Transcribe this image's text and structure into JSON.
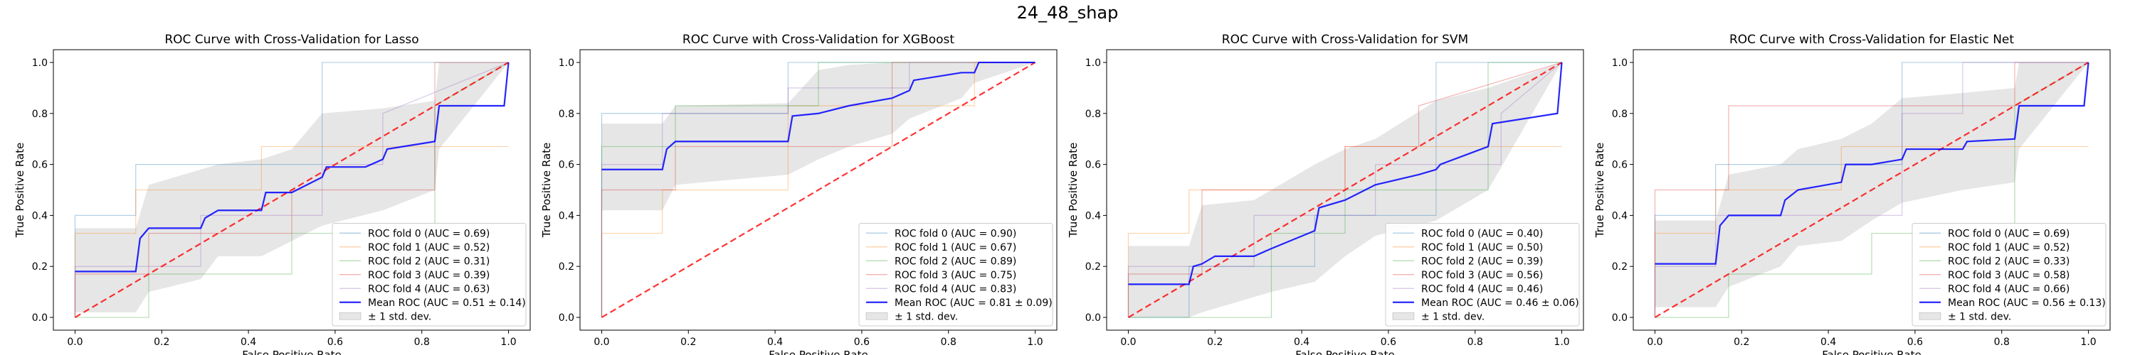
{
  "suptitle": "24_48_shap",
  "colors": {
    "folds": [
      "#1f77b4",
      "#ff7f0e",
      "#2ca02c",
      "#d62728",
      "#9467bd"
    ],
    "mean": "#0000ff",
    "chance": "#ff0000",
    "band": "#808080"
  },
  "chart_data": [
    {
      "type": "line",
      "title": "ROC Curve with Cross-Validation for Lasso",
      "xlabel": "False Positive Rate",
      "ylabel": "True Positive Rate",
      "xlim": [
        -0.05,
        1.05
      ],
      "ylim": [
        -0.05,
        1.05
      ],
      "xticks": [
        "0.0",
        "0.2",
        "0.4",
        "0.6",
        "0.8",
        "1.0"
      ],
      "yticks": [
        "0.0",
        "0.2",
        "0.4",
        "0.6",
        "0.8",
        "1.0"
      ],
      "legend": {
        "position": "lower-right",
        "std_label": "± 1 std. dev."
      },
      "folds": [
        {
          "label": "ROC fold 0 (AUC = 0.69)",
          "x": [
            0,
            0,
            0.14,
            0.14,
            0.57,
            0.57,
            1
          ],
          "y": [
            0,
            0.4,
            0.4,
            0.6,
            0.6,
            1,
            1
          ]
        },
        {
          "label": "ROC fold 1 (AUC = 0.52)",
          "x": [
            0,
            0,
            0.14,
            0.14,
            0.43,
            0.43,
            0.83,
            0.83,
            1
          ],
          "y": [
            0,
            0.33,
            0.33,
            0.5,
            0.5,
            0.67,
            0.67,
            0.67,
            0.67
          ]
        },
        {
          "label": "ROC fold 2 (AUC = 0.31)",
          "x": [
            0,
            0.17,
            0.17,
            0.5,
            0.5,
            0.83,
            0.83,
            1
          ],
          "y": [
            0,
            0,
            0.17,
            0.17,
            0.33,
            0.33,
            0.83,
            1
          ]
        },
        {
          "label": "ROC fold 3 (AUC = 0.39)",
          "x": [
            0,
            0,
            0.17,
            0.17,
            0.5,
            0.5,
            0.83,
            0.83,
            1
          ],
          "y": [
            0,
            0.17,
            0.17,
            0.33,
            0.33,
            0.5,
            0.5,
            1,
            1
          ]
        },
        {
          "label": "ROC fold 4 (AUC = 0.63)",
          "x": [
            0,
            0,
            0.29,
            0.29,
            0.57,
            0.57,
            0.71,
            0.71,
            1
          ],
          "y": [
            0,
            0.2,
            0.2,
            0.4,
            0.4,
            0.6,
            0.6,
            0.8,
            1
          ]
        }
      ],
      "mean": {
        "label": "Mean ROC (AUC = 0.51 ± 0.14)",
        "x": [
          0,
          0.14,
          0.15,
          0.17,
          0.29,
          0.3,
          0.33,
          0.43,
          0.44,
          0.5,
          0.57,
          0.58,
          0.67,
          0.71,
          0.72,
          0.83,
          0.84,
          0.99,
          1
        ],
        "y": [
          0.18,
          0.18,
          0.31,
          0.35,
          0.35,
          0.39,
          0.42,
          0.42,
          0.49,
          0.49,
          0.55,
          0.59,
          0.59,
          0.62,
          0.66,
          0.69,
          0.83,
          0.83,
          1
        ]
      },
      "band": {
        "x": [
          0,
          0.14,
          0.17,
          0.29,
          0.33,
          0.43,
          0.5,
          0.57,
          0.71,
          0.83,
          0.84,
          1
        ],
        "upper": [
          0.35,
          0.35,
          0.52,
          0.58,
          0.6,
          0.62,
          0.66,
          0.8,
          0.82,
          0.85,
          1,
          1
        ],
        "lower": [
          0.02,
          0.02,
          0.1,
          0.15,
          0.24,
          0.24,
          0.3,
          0.36,
          0.42,
          0.5,
          0.66,
          1
        ]
      }
    },
    {
      "type": "line",
      "title": "ROC Curve with Cross-Validation for XGBoost",
      "xlabel": "False Positive Rate",
      "ylabel": "True Positive Rate",
      "xlim": [
        -0.05,
        1.05
      ],
      "ylim": [
        -0.05,
        1.05
      ],
      "xticks": [
        "0.0",
        "0.2",
        "0.4",
        "0.6",
        "0.8",
        "1.0"
      ],
      "yticks": [
        "0.0",
        "0.2",
        "0.4",
        "0.6",
        "0.8",
        "1.0"
      ],
      "legend": {
        "position": "lower-right",
        "std_label": "± 1 std. dev."
      },
      "folds": [
        {
          "label": "ROC fold 0 (AUC = 0.90)",
          "x": [
            0,
            0,
            0.43,
            0.43,
            0.86,
            0.86,
            1
          ],
          "y": [
            0,
            0.8,
            0.8,
            1,
            1,
            1,
            1
          ]
        },
        {
          "label": "ROC fold 1 (AUC = 0.67)",
          "x": [
            0,
            0,
            0.14,
            0.14,
            0.43,
            0.43,
            0.86,
            0.86,
            1
          ],
          "y": [
            0,
            0.33,
            0.33,
            0.5,
            0.5,
            0.83,
            0.83,
            1,
            1
          ]
        },
        {
          "label": "ROC fold 2 (AUC = 0.89)",
          "x": [
            0,
            0,
            0.17,
            0.17,
            0.5,
            0.5,
            1
          ],
          "y": [
            0,
            0.67,
            0.67,
            0.83,
            0.83,
            1,
            1
          ]
        },
        {
          "label": "ROC fold 3 (AUC = 0.75)",
          "x": [
            0,
            0,
            0.17,
            0.17,
            0.67,
            0.67,
            1
          ],
          "y": [
            0,
            0.5,
            0.5,
            0.67,
            0.67,
            1,
            1
          ]
        },
        {
          "label": "ROC fold 4 (AUC = 0.83)",
          "x": [
            0,
            0,
            0.14,
            0.14,
            0.43,
            0.43,
            0.71,
            0.71,
            1
          ],
          "y": [
            0,
            0.6,
            0.6,
            0.8,
            0.8,
            0.9,
            0.9,
            1,
            1
          ]
        }
      ],
      "mean": {
        "label": "Mean ROC (AUC = 0.81 ± 0.09)",
        "x": [
          0,
          0.14,
          0.15,
          0.17,
          0.43,
          0.44,
          0.5,
          0.57,
          0.67,
          0.71,
          0.72,
          0.83,
          0.86,
          0.87,
          1
        ],
        "y": [
          0.58,
          0.58,
          0.66,
          0.69,
          0.69,
          0.79,
          0.8,
          0.83,
          0.86,
          0.89,
          0.93,
          0.96,
          0.96,
          1,
          1
        ]
      },
      "band": {
        "x": [
          0,
          0.14,
          0.17,
          0.43,
          0.5,
          0.57,
          0.67,
          0.71,
          0.83,
          0.86,
          1
        ],
        "upper": [
          0.76,
          0.76,
          0.83,
          0.84,
          0.97,
          0.99,
          1,
          1,
          1,
          1,
          1
        ],
        "lower": [
          0.42,
          0.42,
          0.52,
          0.56,
          0.62,
          0.67,
          0.72,
          0.78,
          0.86,
          0.92,
          1
        ]
      }
    },
    {
      "type": "line",
      "title": "ROC Curve with Cross-Validation for SVM",
      "xlabel": "False Positive Rate",
      "ylabel": "True Positive Rate",
      "xlim": [
        -0.05,
        1.05
      ],
      "ylim": [
        -0.05,
        1.05
      ],
      "xticks": [
        "0.0",
        "0.2",
        "0.4",
        "0.6",
        "0.8",
        "1.0"
      ],
      "yticks": [
        "0.0",
        "0.2",
        "0.4",
        "0.6",
        "0.8",
        "1.0"
      ],
      "legend": {
        "position": "lower-right",
        "std_label": "± 1 std. dev."
      },
      "folds": [
        {
          "label": "ROC fold 0 (AUC = 0.40)",
          "x": [
            0,
            0.14,
            0.14,
            0.43,
            0.43,
            0.71,
            0.71,
            1
          ],
          "y": [
            0,
            0,
            0.2,
            0.2,
            0.4,
            0.4,
            1,
            1
          ]
        },
        {
          "label": "ROC fold 1 (AUC = 0.50)",
          "x": [
            0,
            0,
            0.14,
            0.14,
            0.5,
            0.5,
            0.83,
            0.83,
            1
          ],
          "y": [
            0,
            0.33,
            0.33,
            0.5,
            0.5,
            0.67,
            0.67,
            0.67,
            0.67
          ]
        },
        {
          "label": "ROC fold 2 (AUC = 0.39)",
          "x": [
            0,
            0.33,
            0.33,
            0.5,
            0.5,
            0.83,
            0.83,
            1
          ],
          "y": [
            0,
            0,
            0.33,
            0.33,
            0.5,
            0.5,
            1,
            1
          ]
        },
        {
          "label": "ROC fold 3 (AUC = 0.56)",
          "x": [
            0,
            0,
            0.17,
            0.17,
            0.5,
            0.5,
            0.67,
            0.67,
            1
          ],
          "y": [
            0,
            0.17,
            0.17,
            0.5,
            0.5,
            0.67,
            0.67,
            0.83,
            1
          ]
        },
        {
          "label": "ROC fold 4 (AUC = 0.46)",
          "x": [
            0,
            0,
            0.29,
            0.29,
            0.57,
            0.57,
            0.86,
            0.86,
            1
          ],
          "y": [
            0,
            0.2,
            0.2,
            0.4,
            0.4,
            0.6,
            0.6,
            0.8,
            1
          ]
        }
      ],
      "mean": {
        "label": "Mean ROC (AUC = 0.46 ± 0.06)",
        "x": [
          0,
          0.14,
          0.15,
          0.17,
          0.2,
          0.29,
          0.33,
          0.43,
          0.44,
          0.5,
          0.57,
          0.67,
          0.71,
          0.72,
          0.83,
          0.84,
          0.99,
          1
        ],
        "y": [
          0.13,
          0.13,
          0.2,
          0.21,
          0.24,
          0.24,
          0.27,
          0.34,
          0.43,
          0.46,
          0.52,
          0.56,
          0.58,
          0.6,
          0.67,
          0.76,
          0.8,
          1
        ]
      },
      "band": {
        "x": [
          0,
          0.14,
          0.17,
          0.29,
          0.33,
          0.43,
          0.5,
          0.57,
          0.71,
          0.83,
          1
        ],
        "upper": [
          0.28,
          0.28,
          0.44,
          0.46,
          0.5,
          0.6,
          0.66,
          0.7,
          0.85,
          0.9,
          1
        ],
        "lower": [
          0,
          0,
          0.02,
          0.08,
          0.1,
          0.14,
          0.24,
          0.32,
          0.38,
          0.5,
          1
        ]
      }
    },
    {
      "type": "line",
      "title": "ROC Curve with Cross-Validation for Elastic Net",
      "xlabel": "False Positive Rate",
      "ylabel": "True Positive Rate",
      "xlim": [
        -0.05,
        1.05
      ],
      "ylim": [
        -0.05,
        1.05
      ],
      "xticks": [
        "0.0",
        "0.2",
        "0.4",
        "0.6",
        "0.8",
        "1.0"
      ],
      "yticks": [
        "0.0",
        "0.2",
        "0.4",
        "0.6",
        "0.8",
        "1.0"
      ],
      "legend": {
        "position": "lower-right",
        "std_label": "± 1 std. dev."
      },
      "folds": [
        {
          "label": "ROC fold 0 (AUC = 0.69)",
          "x": [
            0,
            0,
            0.14,
            0.14,
            0.57,
            0.57,
            1
          ],
          "y": [
            0,
            0.4,
            0.4,
            0.6,
            0.6,
            1,
            1
          ]
        },
        {
          "label": "ROC fold 1 (AUC = 0.52)",
          "x": [
            0,
            0,
            0.14,
            0.14,
            0.43,
            0.43,
            0.83,
            0.83,
            1
          ],
          "y": [
            0,
            0.33,
            0.33,
            0.5,
            0.5,
            0.67,
            0.67,
            0.67,
            0.67
          ]
        },
        {
          "label": "ROC fold 2 (AUC = 0.33)",
          "x": [
            0,
            0.17,
            0.17,
            0.5,
            0.5,
            0.83,
            0.83,
            1
          ],
          "y": [
            0,
            0,
            0.17,
            0.17,
            0.33,
            0.33,
            0.83,
            1
          ]
        },
        {
          "label": "ROC fold 3 (AUC = 0.58)",
          "x": [
            0,
            0,
            0.17,
            0.17,
            0.33,
            0.33,
            0.83,
            0.83,
            1
          ],
          "y": [
            0,
            0.5,
            0.5,
            0.83,
            0.83,
            0.83,
            0.83,
            1,
            1
          ]
        },
        {
          "label": "ROC fold 4 (AUC = 0.66)",
          "x": [
            0,
            0,
            0.14,
            0.14,
            0.57,
            0.57,
            0.71,
            0.71,
            1
          ],
          "y": [
            0,
            0.2,
            0.2,
            0.4,
            0.4,
            0.8,
            0.8,
            1,
            1
          ]
        }
      ],
      "mean": {
        "label": "Mean ROC (AUC = 0.56 ± 0.13)",
        "x": [
          0,
          0.14,
          0.15,
          0.17,
          0.29,
          0.3,
          0.33,
          0.43,
          0.44,
          0.5,
          0.57,
          0.58,
          0.67,
          0.71,
          0.72,
          0.83,
          0.84,
          0.99,
          1
        ],
        "y": [
          0.21,
          0.21,
          0.36,
          0.4,
          0.4,
          0.46,
          0.5,
          0.53,
          0.6,
          0.6,
          0.62,
          0.66,
          0.66,
          0.66,
          0.69,
          0.7,
          0.83,
          0.83,
          1
        ]
      },
      "band": {
        "x": [
          0,
          0.14,
          0.17,
          0.29,
          0.33,
          0.43,
          0.5,
          0.57,
          0.71,
          0.83,
          0.84,
          1
        ],
        "upper": [
          0.38,
          0.38,
          0.56,
          0.6,
          0.66,
          0.7,
          0.76,
          0.86,
          0.88,
          0.9,
          1,
          1
        ],
        "lower": [
          0.04,
          0.04,
          0.12,
          0.2,
          0.28,
          0.3,
          0.38,
          0.45,
          0.5,
          0.53,
          0.66,
          1
        ]
      }
    }
  ]
}
